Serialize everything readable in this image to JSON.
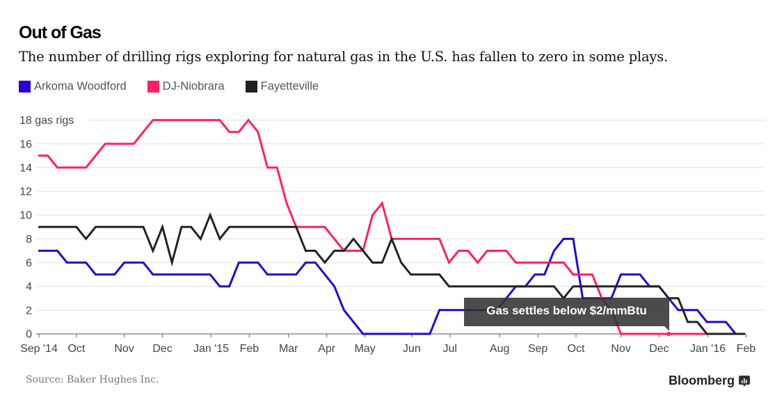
{
  "header": {
    "title": "Out of Gas",
    "subtitle": "The number of drilling rigs exploring for natural gas in the U.S. has fallen to zero in some plays."
  },
  "legend": [
    {
      "label": "Arkoma Woodford",
      "color": "#2800d7"
    },
    {
      "label": "DJ-Niobrara",
      "color": "#ff2063"
    },
    {
      "label": "Fayetteville",
      "color": "#222222"
    }
  ],
  "footer": {
    "source": "Source: Baker Hughes Inc.",
    "brand": "Bloomberg"
  },
  "annotation": {
    "text": "Gas settles below $2/mmBtu",
    "series": "DJ-Niobrara",
    "week_index": 66
  },
  "chart_data": {
    "type": "line",
    "title": "Out of Gas",
    "subtitle": "The number of drilling rigs exploring for natural gas in the U.S. has fallen to zero in some plays.",
    "xlabel": "",
    "ylabel": "gas rigs",
    "x_unit": "weekly observations, Sep 2014 - Feb 2016",
    "x": [
      0,
      1,
      2,
      3,
      4,
      5,
      6,
      7,
      8,
      9,
      10,
      11,
      12,
      13,
      14,
      15,
      16,
      17,
      18,
      19,
      20,
      21,
      22,
      23,
      24,
      25,
      26,
      27,
      28,
      29,
      30,
      31,
      32,
      33,
      34,
      35,
      36,
      37,
      38,
      39,
      40,
      41,
      42,
      43,
      44,
      45,
      46,
      47,
      48,
      49,
      50,
      51,
      52,
      53,
      54,
      55,
      56,
      57,
      58,
      59,
      60,
      61,
      62,
      63,
      64,
      65,
      66,
      67,
      68,
      69,
      70,
      71,
      72,
      73,
      74
    ],
    "xlim": [
      0,
      74
    ],
    "ylim": [
      0,
      18
    ],
    "yticks": [
      {
        "value": 0,
        "label": "0"
      },
      {
        "value": 2,
        "label": "2"
      },
      {
        "value": 4,
        "label": "4"
      },
      {
        "value": 6,
        "label": "6"
      },
      {
        "value": 8,
        "label": "8"
      },
      {
        "value": 10,
        "label": "10"
      },
      {
        "value": 12,
        "label": "12"
      },
      {
        "value": 14,
        "label": "14"
      },
      {
        "value": 16,
        "label": "16"
      },
      {
        "value": 18,
        "label": "18 gas rigs"
      }
    ],
    "xticks": [
      {
        "value": 0.07,
        "label": "Sep '14"
      },
      {
        "value": 4.0,
        "label": "Oct"
      },
      {
        "value": 9.0,
        "label": "Nov"
      },
      {
        "value": 13.0,
        "label": "Dec"
      },
      {
        "value": 18.1,
        "label": "Jan '15"
      },
      {
        "value": 22.1,
        "label": "Feb"
      },
      {
        "value": 26.2,
        "label": "Mar"
      },
      {
        "value": 30.2,
        "label": "Apr"
      },
      {
        "value": 34.2,
        "label": "May"
      },
      {
        "value": 39.1,
        "label": "Jun"
      },
      {
        "value": 43.1,
        "label": "Jul"
      },
      {
        "value": 48.3,
        "label": "Aug"
      },
      {
        "value": 52.3,
        "label": "Sep"
      },
      {
        "value": 56.3,
        "label": "Oct"
      },
      {
        "value": 61.0,
        "label": "Nov"
      },
      {
        "value": 65.0,
        "label": "Dec"
      },
      {
        "value": 70.1,
        "label": "Jan '16"
      },
      {
        "value": 74.1,
        "label": "Feb"
      }
    ],
    "grid": true,
    "legend_position": "top-left",
    "series": [
      {
        "name": "Arkoma Woodford",
        "color": "#2800d7",
        "values": [
          7,
          7,
          7,
          6,
          6,
          6,
          5,
          5,
          5,
          6,
          6,
          6,
          5,
          5,
          5,
          5,
          5,
          5,
          5,
          4,
          4,
          6,
          6,
          6,
          5,
          5,
          5,
          5,
          6,
          6,
          5,
          4,
          2,
          1,
          0,
          0,
          0,
          0,
          0,
          0,
          0,
          0,
          2,
          2,
          2,
          2,
          2,
          2,
          2,
          3,
          4,
          4,
          5,
          5,
          7,
          8,
          8,
          3,
          3,
          3,
          3,
          5,
          5,
          5,
          4,
          4,
          3,
          2,
          2,
          2,
          1,
          1,
          1,
          0,
          0
        ]
      },
      {
        "name": "DJ-Niobrara",
        "color": "#ff2063",
        "values": [
          15,
          15,
          14,
          14,
          14,
          14,
          15,
          16,
          16,
          16,
          16,
          17,
          18,
          18,
          18,
          18,
          18,
          18,
          18,
          18,
          17,
          17,
          18,
          17,
          14,
          14,
          11,
          9,
          9,
          9,
          9,
          8,
          7,
          7,
          7,
          10,
          11,
          8,
          8,
          8,
          8,
          8,
          8,
          6,
          7,
          7,
          6,
          7,
          7,
          7,
          6,
          6,
          6,
          6,
          6,
          6,
          5,
          5,
          5,
          3,
          2,
          0,
          0,
          0,
          0,
          0,
          0,
          0,
          0,
          0,
          0,
          0,
          0,
          0,
          0
        ]
      },
      {
        "name": "Fayetteville",
        "color": "#222222",
        "values": [
          9,
          9,
          9,
          9,
          9,
          8,
          9,
          9,
          9,
          9,
          9,
          9,
          7,
          9,
          6,
          9,
          9,
          8,
          10,
          8,
          9,
          9,
          9,
          9,
          9,
          9,
          9,
          9,
          7,
          7,
          6,
          7,
          7,
          8,
          7,
          6,
          6,
          8,
          6,
          5,
          5,
          5,
          5,
          4,
          4,
          4,
          4,
          4,
          4,
          4,
          4,
          4,
          4,
          4,
          4,
          3,
          4,
          4,
          4,
          4,
          4,
          4,
          4,
          4,
          4,
          4,
          3,
          3,
          1,
          1,
          0,
          0,
          0,
          0,
          0
        ]
      }
    ]
  }
}
